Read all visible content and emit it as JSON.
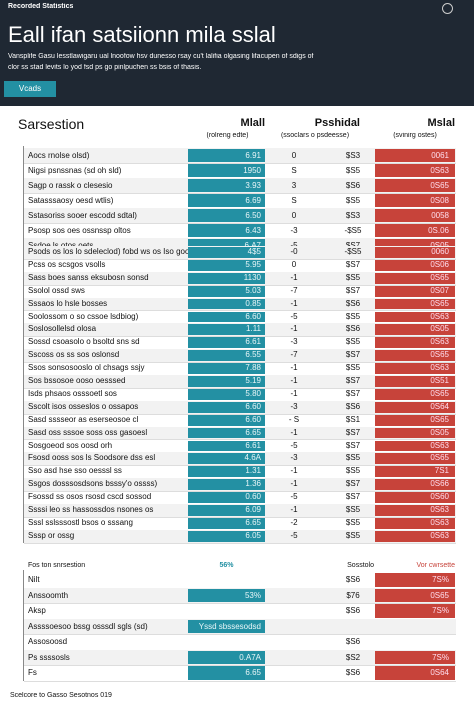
{
  "header": {
    "topbar": "Recorded Statistics",
    "title": "Eall ifan satsiionn mila sslal",
    "subtitle": [
      "Vansplife Gasu lesstlawigaru ual lnoofow hsv dunesso rsay cu't lalifia olgasing lifacupen of sdigs of",
      "clor ss stad levits lo yod fsd ps go pinlpuchen ss bsis of thasis."
    ],
    "button": "Vcads"
  },
  "columns": {
    "names": [
      "Sarsestion",
      "Mlall",
      "Psshidal",
      "Mslal"
    ],
    "notes": [
      "(rolreng edte)",
      "(ssoclars o psdeesse)",
      "(svinirg ostes)"
    ]
  },
  "sections": [
    {
      "rows": [
        [
          "Aocs rnolse olsd)",
          "6.91",
          "0",
          "$S3",
          "0061"
        ],
        [
          "Nigsi psnssnas (sd oh sld)",
          "1950",
          "S",
          "$S5",
          "0S63"
        ],
        [
          "Sagp o rassk o clesesio",
          "3.93",
          "3",
          "$S6",
          "0S65"
        ],
        [
          "Satasssaosy oesd wtlis)",
          "6.69",
          "S",
          "$S5",
          "0S08"
        ],
        [
          "Sstasoriss sooer escodd sdtal)",
          "6.50",
          "0",
          "$S3",
          "0058"
        ],
        [
          "Psosp sos oes ossnssp oltos",
          "6.43",
          "-3",
          "-$S5",
          "0S.06"
        ],
        [
          "Ssdoe ls otos oets",
          "6.A7",
          "-5",
          "$S7",
          "0S05"
        ]
      ]
    },
    {
      "rows": [
        [
          "Psods os los lo sdeleclod) fobd ws os Iso goosstos csnsosde",
          "4$5",
          "-0",
          "-$S5",
          "0060"
        ],
        [
          "Pcss os scsgos vsolls",
          "5.95",
          "0",
          "$S7",
          "0S06"
        ],
        [
          "Sass boes sanss eksubosn sonsd",
          "1130",
          "-1",
          "$S5",
          "0S65"
        ],
        [
          "Ssolol ossd sws",
          "5.03",
          "-7",
          "$S7",
          "0S07"
        ],
        [
          "Sssaos lo hsle bosses",
          "0.85",
          "-1",
          "$S6",
          "0S65"
        ],
        [
          "Soolossom o so cssoe lsdbiog)",
          "6.60",
          "-5",
          "$S5",
          "0S63"
        ],
        [
          "Soslosollelsd olosa",
          "1.11",
          "-1",
          "$S6",
          "0S05"
        ],
        [
          "Sossd csoasolo o bsoltd sns sd",
          "6.61",
          "-3",
          "$S5",
          "0S63"
        ],
        [
          "Sscoss os ss sos oslonsd",
          "6.55",
          "-7",
          "$S7",
          "0S65"
        ],
        [
          "Ssos sonsosooslo ol chsags ssjy",
          "7.88",
          "-1",
          "$S5",
          "0S63"
        ],
        [
          "Sos bssosoe ooso oesssed",
          "5.19",
          "-1",
          "$S7",
          "0S51"
        ],
        [
          "Isds phsaos osssoetl sos",
          "5.80",
          "-1",
          "$S7",
          "0S65"
        ],
        [
          "Sscolt isos osseslos o ossapos",
          "6.60",
          "-3",
          "$S6",
          "0S64"
        ],
        [
          "Sasd sssseor as eserseosoe cl",
          "6.60",
          "- S",
          "$S1",
          "0S65"
        ],
        [
          "Sasd oss sssoe soss oss gasoesl",
          "6.65",
          "-1",
          "$S7",
          "0S05"
        ],
        [
          "Sosgoeod sos oosd orh",
          "6.61",
          "-5",
          "$S7",
          "0S63"
        ],
        [
          "Fsosd ooss sos ls Soodsore dss esl",
          "4.6A",
          "-3",
          "$S5",
          "0S65"
        ],
        [
          "Sso asd hse sso oesssl ss",
          "1.31",
          "-1",
          "$S5",
          "7S1"
        ],
        [
          "Ssgos dosssosdsons bsssy'o ossss)",
          "1.36",
          "-1",
          "$S7",
          "0S66"
        ],
        [
          "Fsossd ss osos rsosd cscd sossod",
          "0.60",
          "-5",
          "$S7",
          "0S60"
        ],
        [
          "Ssssi leo ss hassossdos nsones os",
          "6.09",
          "-1",
          "$S5",
          "0S63"
        ],
        [
          "Sssl sslsssostl bsos o sssang",
          "6.65",
          "-2",
          "$S5",
          "0S63"
        ],
        [
          "Sssp or ossg",
          "6.05",
          "-5",
          "$S5",
          "0S63"
        ]
      ]
    },
    {
      "head": [
        "Fos ton snrsestion",
        "56%",
        "Sosstolo",
        "Vor cwrsette"
      ],
      "rows": [
        [
          "Nilt",
          null,
          null,
          "$S6",
          "7S%"
        ],
        [
          "Anssoomth",
          "53%",
          null,
          "$76",
          "0S65"
        ],
        [
          "Aksp",
          null,
          null,
          "$S6",
          "7S%"
        ],
        [
          "Assssoesoo bssg osssdl sgls (sd)",
          "Yssd sbssesodsd",
          null,
          null,
          null
        ],
        [
          "Assosoosd",
          null,
          null,
          "$S6",
          null
        ],
        [
          "Ps ssssosls",
          "0.A7A",
          null,
          "$S2",
          "7S%"
        ],
        [
          "Fs",
          "6.65",
          null,
          "$S6",
          "0S64"
        ]
      ]
    }
  ],
  "footer": "Scelcore to Gasso Sesotnos 019"
}
